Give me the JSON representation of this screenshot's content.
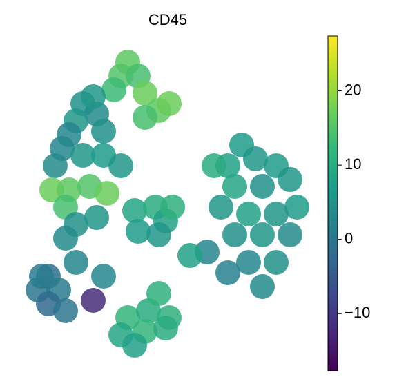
{
  "chart_data": {
    "type": "scatter",
    "title": "CD45",
    "colormap": "viridis",
    "x": [
      145,
      135,
      160,
      125,
      170,
      80,
      100,
      70,
      110,
      60,
      95,
      190,
      170,
      205,
      50,
      80,
      110,
      135,
      40,
      35,
      60,
      90,
      115,
      55,
      70,
      100,
      55,
      70,
      155,
      185,
      200,
      160,
      190,
      210,
      310,
      290,
      330,
      360,
      380,
      300,
      340,
      390,
      280,
      320,
      360,
      300,
      340,
      380,
      320,
      360,
      340,
      270,
      260,
      235,
      290,
      30,
      15,
      45,
      30,
      55,
      20,
      95,
      110,
      145,
      175,
      205,
      135,
      170,
      200,
      155,
      190
    ],
    "y": [
      435,
      415,
      415,
      395,
      390,
      375,
      360,
      350,
      335,
      330,
      385,
      365,
      355,
      375,
      310,
      300,
      300,
      285,
      285,
      250,
      250,
      255,
      245,
      225,
      200,
      210,
      180,
      145,
      220,
      225,
      205,
      190,
      185,
      225,
      315,
      285,
      295,
      285,
      265,
      255,
      255,
      225,
      225,
      215,
      215,
      185,
      185,
      185,
      145,
      145,
      110,
      285,
      160,
      155,
      130,
      125,
      105,
      105,
      85,
      75,
      125,
      90,
      125,
      65,
      75,
      65,
      40,
      45,
      50,
      25,
      100
    ],
    "values": [
      16,
      15,
      14,
      13,
      17,
      5,
      4,
      6,
      5,
      3,
      6,
      16,
      14,
      17,
      3,
      6,
      7,
      6,
      4,
      17,
      16,
      15,
      17,
      14,
      5,
      6,
      4,
      3,
      9,
      10,
      8,
      7,
      6,
      11,
      7,
      8,
      6,
      7,
      6,
      9,
      5,
      7,
      6,
      8,
      6,
      5,
      6,
      4,
      3,
      5,
      4,
      10,
      3,
      8,
      2,
      -1,
      0,
      1,
      -2,
      0,
      1,
      -12,
      3,
      12,
      10,
      11,
      9,
      12,
      10,
      8,
      11
    ],
    "xlim": [
      0,
      415
    ],
    "ylim": [
      0,
      460
    ],
    "clim": [
      -17.7,
      27.4
    ],
    "cticks": [
      {
        "value": -10,
        "label": "−10"
      },
      0,
      10,
      20
    ]
  }
}
